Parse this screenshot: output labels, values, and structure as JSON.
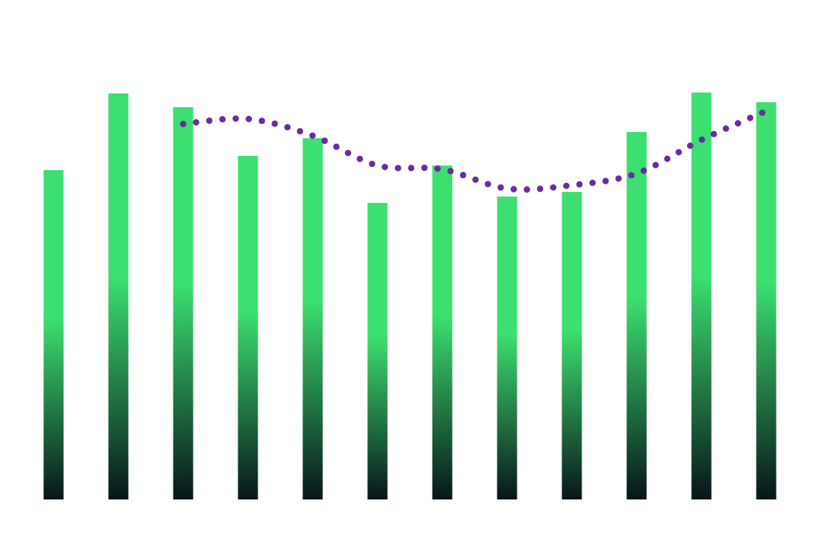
{
  "chart_data": {
    "type": "bar",
    "categories": [
      null,
      null,
      null,
      null,
      null,
      null,
      null,
      null,
      null,
      null,
      null,
      null
    ],
    "ylim": [
      0,
      100
    ],
    "series": [
      {
        "type": "bar",
        "color": "#3ce070",
        "color_bottom": "#08151a",
        "values": [
          78.5,
          96.8,
          93.5,
          81.9,
          86.1,
          70.7,
          79.6,
          72.2,
          73.3,
          87.6,
          97.0,
          94.7
        ]
      },
      {
        "type": "line",
        "color": "#6a2c9e",
        "line_style": "dotted",
        "values": [
          null,
          null,
          89.5,
          90.7,
          86.7,
          79.6,
          78.7,
          74.1,
          74.9,
          77.7,
          85.7,
          92.6
        ]
      }
    ]
  }
}
